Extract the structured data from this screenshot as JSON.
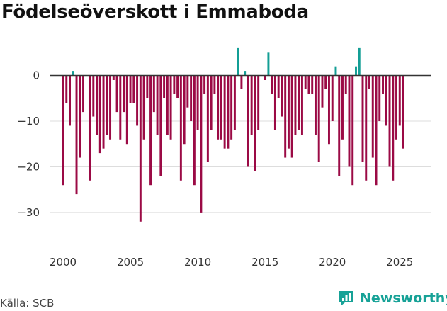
{
  "title": "Födelseöverskott i Emmaboda",
  "source": "Källa: SCB",
  "brand": {
    "name": "Newsworthy",
    "icon": "newsworthy-logo-icon"
  },
  "colors": {
    "negative": "#9b0a45",
    "positive": "#139e95",
    "grid": "#dddddd",
    "zero_line": "#333333",
    "brand": "#17a297"
  },
  "chart_data": {
    "type": "bar",
    "title": "Födelseöverskott i Emmaboda",
    "xlabel": "",
    "ylabel": "",
    "x_start": 2000.0,
    "x_step": 0.25,
    "xlim": [
      1999.0,
      2027.3
    ],
    "ylim": [
      -37,
      8
    ],
    "x_ticks": [
      2000,
      2005,
      2010,
      2015,
      2020,
      2025
    ],
    "y_ticks": [
      0,
      -10,
      -20,
      -30
    ],
    "y_tick_labels": [
      "0",
      "−10",
      "−20",
      "−30"
    ],
    "values": [
      -24,
      -6,
      -11,
      1,
      -26,
      -18,
      -8,
      0,
      -23,
      -9,
      -13,
      -17,
      -16,
      -13,
      -14,
      -1,
      -8,
      -14,
      -8,
      -15,
      -6,
      -6,
      -11,
      -32,
      -14,
      -5,
      -24,
      -8,
      -13,
      -22,
      -5,
      -13,
      -14,
      -4,
      -5,
      -23,
      -15,
      -7,
      -10,
      -24,
      -12,
      -30,
      -4,
      -19,
      -12,
      -4,
      -14,
      -14,
      -16,
      -16,
      -14,
      -12,
      6,
      -3,
      1,
      -20,
      -13,
      -21,
      -12,
      0,
      -1,
      5,
      -4,
      -12,
      -5,
      -9,
      -18,
      -16,
      -18,
      -13,
      -12,
      -13,
      -3,
      -4,
      -4,
      -13,
      -19,
      -7,
      -3,
      -15,
      -10,
      2,
      -22,
      -14,
      -4,
      -20,
      -24,
      2,
      6,
      -19,
      -23,
      -3,
      -18,
      -24,
      -10,
      -4,
      -11,
      -20,
      -23,
      -14,
      -11,
      -16
    ]
  }
}
